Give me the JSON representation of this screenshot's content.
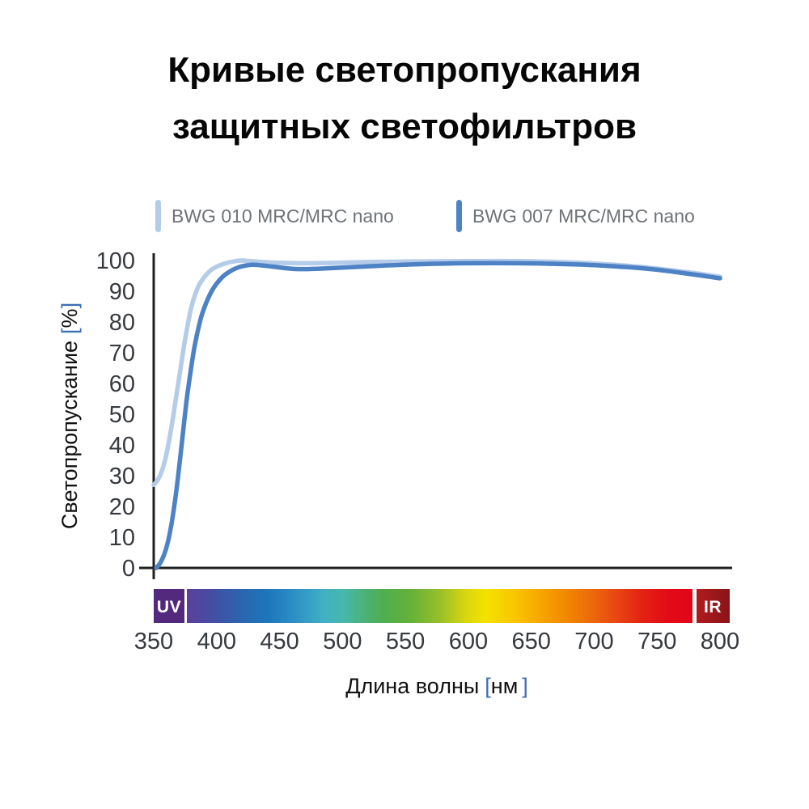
{
  "title": {
    "line1": "Кривые светопропускания",
    "line2": "защитных светофильтров"
  },
  "legend": {
    "position": "top",
    "items": [
      {
        "label": "BWG 010 MRC/MRC nano",
        "color": "#b4cbe9"
      },
      {
        "label": "BWG 007 MRC/MRC nano",
        "color": "#4d82c4"
      }
    ]
  },
  "chart_data": {
    "type": "line",
    "title": "Кривые светопропускания защитных светофильтров",
    "xlabel": {
      "text": "Длина волны",
      "bracket_open": "[",
      "unit": "нм",
      "bracket_close": "]"
    },
    "ylabel": {
      "text": "Светопропускание",
      "bracket_open": "[",
      "unit": "%",
      "bracket_close": "]"
    },
    "xlim": [
      350,
      800
    ],
    "ylim": [
      0,
      100
    ],
    "x_ticks": [
      350,
      400,
      450,
      500,
      550,
      600,
      650,
      700,
      750,
      800
    ],
    "y_ticks": [
      0,
      10,
      20,
      30,
      40,
      50,
      60,
      70,
      80,
      90,
      100
    ],
    "grid": false,
    "legend_position": "top",
    "series": [
      {
        "name": "BWG 010 MRC/MRC nano",
        "color": "#b4cbe9",
        "stroke_width": 5.5,
        "points": [
          [
            350,
            27
          ],
          [
            353,
            28.5
          ],
          [
            356,
            31
          ],
          [
            359,
            35
          ],
          [
            362,
            41
          ],
          [
            365,
            48
          ],
          [
            368,
            56
          ],
          [
            371,
            64
          ],
          [
            374,
            72
          ],
          [
            377,
            79
          ],
          [
            380,
            85
          ],
          [
            383,
            89
          ],
          [
            386,
            92
          ],
          [
            390,
            94.5
          ],
          [
            395,
            96.7
          ],
          [
            400,
            98
          ],
          [
            405,
            98.8
          ],
          [
            410,
            99.4
          ],
          [
            415,
            99.8
          ],
          [
            420,
            100
          ],
          [
            430,
            99.7
          ],
          [
            440,
            99.4
          ],
          [
            455,
            99.2
          ],
          [
            470,
            99.1
          ],
          [
            490,
            99.2
          ],
          [
            520,
            99.5
          ],
          [
            560,
            99.7
          ],
          [
            600,
            99.8
          ],
          [
            640,
            99.8
          ],
          [
            680,
            99.4
          ],
          [
            700,
            99
          ],
          [
            720,
            98.5
          ],
          [
            740,
            97.8
          ],
          [
            760,
            96.9
          ],
          [
            780,
            95.9
          ],
          [
            800,
            94.7
          ]
        ]
      },
      {
        "name": "BWG 007 MRC/MRC nano",
        "color": "#4d82c4",
        "stroke_width": 5.5,
        "points": [
          [
            352,
            0
          ],
          [
            355,
            1.5
          ],
          [
            358,
            4
          ],
          [
            361,
            8
          ],
          [
            364,
            14
          ],
          [
            367,
            22
          ],
          [
            370,
            32
          ],
          [
            373,
            43
          ],
          [
            376,
            54
          ],
          [
            379,
            63
          ],
          [
            382,
            71
          ],
          [
            385,
            77
          ],
          [
            388,
            82
          ],
          [
            392,
            86.5
          ],
          [
            396,
            90
          ],
          [
            400,
            92.5
          ],
          [
            405,
            94.8
          ],
          [
            410,
            96.3
          ],
          [
            415,
            97.4
          ],
          [
            420,
            98.1
          ],
          [
            428,
            98.6
          ],
          [
            436,
            98.4
          ],
          [
            445,
            98
          ],
          [
            455,
            97.5
          ],
          [
            465,
            97.2
          ],
          [
            480,
            97.3
          ],
          [
            500,
            97.7
          ],
          [
            530,
            98.3
          ],
          [
            560,
            98.8
          ],
          [
            600,
            99.1
          ],
          [
            640,
            99.1
          ],
          [
            680,
            98.8
          ],
          [
            700,
            98.5
          ],
          [
            720,
            98
          ],
          [
            740,
            97.4
          ],
          [
            760,
            96.5
          ],
          [
            780,
            95.4
          ],
          [
            800,
            94.2
          ]
        ]
      }
    ],
    "spectrum_bar": {
      "uv_label": "UV",
      "ir_label": "IR",
      "uv_color": "#53297d",
      "ir_gradient": [
        "#b11b1f",
        "#8a1418"
      ],
      "gradient_stops": [
        {
          "offset": 0.0,
          "color": "#5b3f9b"
        },
        {
          "offset": 0.06,
          "color": "#3f51a5"
        },
        {
          "offset": 0.11,
          "color": "#2a66b0"
        },
        {
          "offset": 0.16,
          "color": "#1d76bb"
        },
        {
          "offset": 0.21,
          "color": "#2b8ec5"
        },
        {
          "offset": 0.27,
          "color": "#41b0c5"
        },
        {
          "offset": 0.31,
          "color": "#47b8ab"
        },
        {
          "offset": 0.35,
          "color": "#4bb277"
        },
        {
          "offset": 0.39,
          "color": "#4fae4e"
        },
        {
          "offset": 0.44,
          "color": "#63b13a"
        },
        {
          "offset": 0.5,
          "color": "#97c028"
        },
        {
          "offset": 0.55,
          "color": "#d8d50f"
        },
        {
          "offset": 0.59,
          "color": "#f4e300"
        },
        {
          "offset": 0.65,
          "color": "#f9c400"
        },
        {
          "offset": 0.7,
          "color": "#f7a500"
        },
        {
          "offset": 0.75,
          "color": "#f18800"
        },
        {
          "offset": 0.8,
          "color": "#ec6a0a"
        },
        {
          "offset": 0.85,
          "color": "#e84613"
        },
        {
          "offset": 0.9,
          "color": "#e42313"
        },
        {
          "offset": 0.95,
          "color": "#e30b17"
        },
        {
          "offset": 1.0,
          "color": "#e2051a"
        }
      ]
    },
    "colors": {
      "axis": "#1f1f1f",
      "tick_text": "#36393e",
      "bracket": "#3d6fb4"
    }
  }
}
